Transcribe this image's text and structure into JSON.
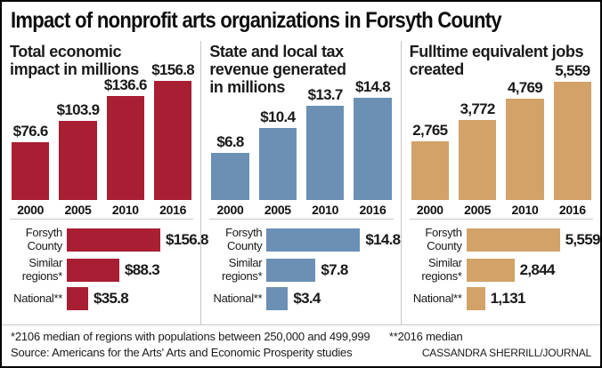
{
  "title": "Impact of nonprofit arts organizations in Forsyth County",
  "footnotes": {
    "footnote1": "*2106 median of regions with populations between 250,000 and 499,999",
    "footnote2": "**2016 median",
    "source": "Source: Americans for the Arts' Arts and Economic Prosperity studies",
    "credit": "CASSANDRA SHERRILL/JOURNAL"
  },
  "colors": {
    "economic_impact": "#a81e33",
    "tax_revenue": "#6b90b4",
    "jobs": "#d2a269",
    "divider": "#c9c9c9"
  },
  "chart_data": [
    {
      "type": "bar",
      "title": "Total economic impact in millions",
      "color": "#a81e33",
      "categories": [
        "2000",
        "2005",
        "2010",
        "2016"
      ],
      "values": [
        76.6,
        103.9,
        136.6,
        156.8
      ],
      "labels": [
        "$76.6",
        "$103.9",
        "$136.6",
        "$156.8"
      ],
      "comparison": {
        "type": "bar-horizontal",
        "categories": [
          "Forsyth County",
          "Similar regions*",
          "National**"
        ],
        "values": [
          156.8,
          88.3,
          35.8
        ],
        "labels": [
          "$156.8",
          "$88.3",
          "$35.8"
        ]
      }
    },
    {
      "type": "bar",
      "title": "State and local tax revenue generated in millions",
      "color": "#6b90b4",
      "categories": [
        "2000",
        "2005",
        "2010",
        "2016"
      ],
      "values": [
        6.8,
        10.4,
        13.7,
        14.8
      ],
      "labels": [
        "$6.8",
        "$10.4",
        "$13.7",
        "$14.8"
      ],
      "comparison": {
        "type": "bar-horizontal",
        "categories": [
          "Forsyth County",
          "Similar regions*",
          "National**"
        ],
        "values": [
          14.8,
          7.8,
          3.4
        ],
        "labels": [
          "$14.8",
          "$7.8",
          "$3.4"
        ]
      }
    },
    {
      "type": "bar",
      "title": "Fulltime equivalent jobs created",
      "color": "#d2a269",
      "categories": [
        "2000",
        "2005",
        "2010",
        "2016"
      ],
      "values": [
        2765,
        3772,
        4769,
        5559
      ],
      "labels": [
        "2,765",
        "3,772",
        "4,769",
        "5,559"
      ],
      "comparison": {
        "type": "bar-horizontal",
        "categories": [
          "Forsyth County",
          "Similar regions*",
          "National**"
        ],
        "values": [
          5559,
          2844,
          1131
        ],
        "labels": [
          "5,559",
          "2,844",
          "1,131"
        ]
      }
    }
  ]
}
